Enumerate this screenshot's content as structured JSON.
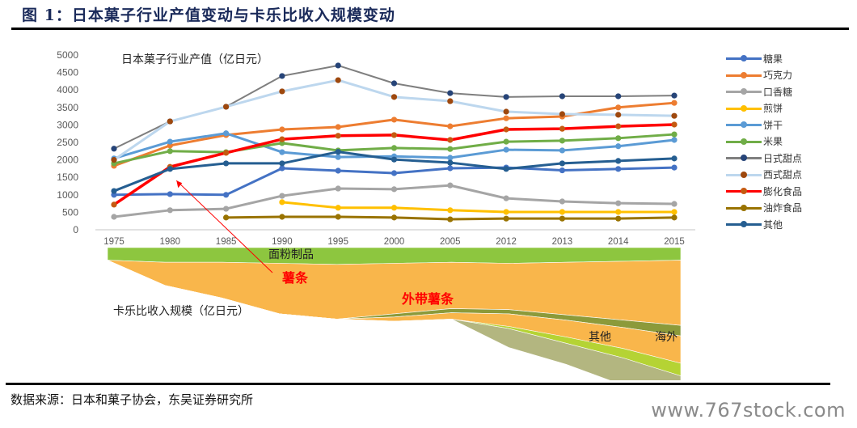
{
  "figure": {
    "title": "图 1：日本菓子行业产值变动与卡乐比收入规模变动",
    "source": "数据来源：日本和菓子协会，东吴证券研究所",
    "watermark": "www.767stock.com"
  },
  "chart_data": [
    {
      "type": "line",
      "title": "日本菓子行业产值（亿日元）",
      "xlabel": "",
      "ylabel": "",
      "categories": [
        "1975",
        "1980",
        "1985",
        "1990",
        "1995",
        "2000",
        "2005",
        "2012",
        "2013",
        "2014",
        "2015"
      ],
      "ylim": [
        0,
        5000
      ],
      "yticks": [
        0,
        500,
        1000,
        1500,
        2000,
        2500,
        3000,
        3500,
        4000,
        4500,
        5000
      ],
      "grid": false,
      "legend_position": "right",
      "series": [
        {
          "name": "糖果",
          "color": "#4472c4",
          "dot": "#4472c4",
          "width": 3,
          "values": [
            1000,
            1020,
            1000,
            1760,
            1690,
            1620,
            1760,
            1780,
            1700,
            1740,
            1780
          ]
        },
        {
          "name": "巧克力",
          "color": "#ed7d31",
          "dot": "#ed7d31",
          "width": 3,
          "values": [
            1830,
            2410,
            2710,
            2870,
            2940,
            3150,
            2960,
            3190,
            3240,
            3500,
            3630
          ]
        },
        {
          "name": "口香糖",
          "color": "#a5a5a5",
          "dot": "#a5a5a5",
          "width": 3,
          "values": [
            370,
            560,
            600,
            970,
            1180,
            1160,
            1270,
            900,
            810,
            760,
            740
          ]
        },
        {
          "name": "煎饼",
          "color": "#ffc000",
          "dot": "#ffc000",
          "width": 3,
          "values": [
            null,
            null,
            null,
            790,
            630,
            630,
            560,
            510,
            510,
            510,
            510
          ]
        },
        {
          "name": "饼干",
          "color": "#5b9bd5",
          "dot": "#5b9bd5",
          "width": 3,
          "values": [
            2040,
            2520,
            2760,
            2220,
            2080,
            2100,
            2060,
            2290,
            2270,
            2390,
            2570
          ]
        },
        {
          "name": "米果",
          "color": "#70ad47",
          "dot": "#70ad47",
          "width": 3,
          "values": [
            1900,
            2250,
            2220,
            2480,
            2270,
            2340,
            2310,
            2520,
            2550,
            2620,
            2730
          ]
        },
        {
          "name": "日式甜点",
          "color": "#7f7f7f",
          "dot": "#264478",
          "width": 2,
          "values": [
            2320,
            3100,
            3520,
            4400,
            4700,
            4190,
            3910,
            3800,
            3820,
            3820,
            3840
          ]
        },
        {
          "name": "西式甜点",
          "color": "#bdd7ee",
          "dot": "#9e480e",
          "width": 3,
          "values": [
            2000,
            3100,
            3520,
            3960,
            4280,
            3800,
            3680,
            3380,
            3310,
            3290,
            3260
          ]
        },
        {
          "name": "膨化食品",
          "color": "#ff0000",
          "dot": "#c55a11",
          "width": 3.5,
          "values": [
            720,
            1800,
            2200,
            2590,
            2690,
            2710,
            2570,
            2870,
            2890,
            2960,
            3010
          ]
        },
        {
          "name": "油炸食品",
          "color": "#997300",
          "dot": "#997300",
          "width": 3,
          "values": [
            null,
            null,
            350,
            370,
            370,
            350,
            300,
            320,
            320,
            320,
            350
          ]
        },
        {
          "name": "其他",
          "color": "#255e91",
          "dot": "#255e91",
          "width": 3,
          "values": [
            1110,
            1740,
            1900,
            1900,
            2230,
            2010,
            1920,
            1740,
            1900,
            1970,
            2040
          ]
        }
      ],
      "annotation": {
        "text": "薯条",
        "target_series": "膨化食品",
        "target_category": "1980",
        "color": "#ff0000"
      }
    },
    {
      "type": "area",
      "title": "卡乐比收入规模（亿日元）",
      "note": "stacked streamgraph, no numeric axis shown; values are relative layer thicknesses",
      "categories": [
        "1975",
        "1980",
        "1985",
        "1990",
        "1995",
        "2000",
        "2005",
        "2012",
        "2013",
        "2014",
        "2015"
      ],
      "series": [
        {
          "name": "面粉制品",
          "label_color": "#222222",
          "color": "#8dc63f",
          "values": [
            12,
            14,
            14,
            15,
            16,
            15,
            14,
            15,
            14,
            13,
            12
          ]
        },
        {
          "name": "薯条",
          "label_color": "#ff0000",
          "color": "#f9b64b",
          "values": [
            0,
            22,
            34,
            48,
            52,
            48,
            44,
            44,
            50,
            56,
            62
          ]
        },
        {
          "name": "外带薯条",
          "label_color": "#ff0000",
          "color": "#8c9a3a",
          "values": [
            0,
            0,
            0,
            0,
            0,
            3,
            4,
            4,
            5,
            7,
            10
          ]
        },
        {
          "name": "外带薯条(续)",
          "color": "#f9b64b",
          "values": [
            0,
            0,
            0,
            0,
            0,
            4,
            6,
            12,
            16,
            20,
            26
          ]
        },
        {
          "name": "海外",
          "label_color": "#222222",
          "color": "#b5d334",
          "values": [
            0,
            0,
            0,
            0,
            0,
            0,
            0,
            2,
            6,
            9,
            12
          ]
        },
        {
          "name": "其他",
          "label_color": "#222222",
          "color": "#b3b680",
          "values": [
            0,
            0,
            0,
            0,
            0,
            0,
            0,
            18,
            20,
            26,
            34
          ]
        }
      ]
    }
  ]
}
